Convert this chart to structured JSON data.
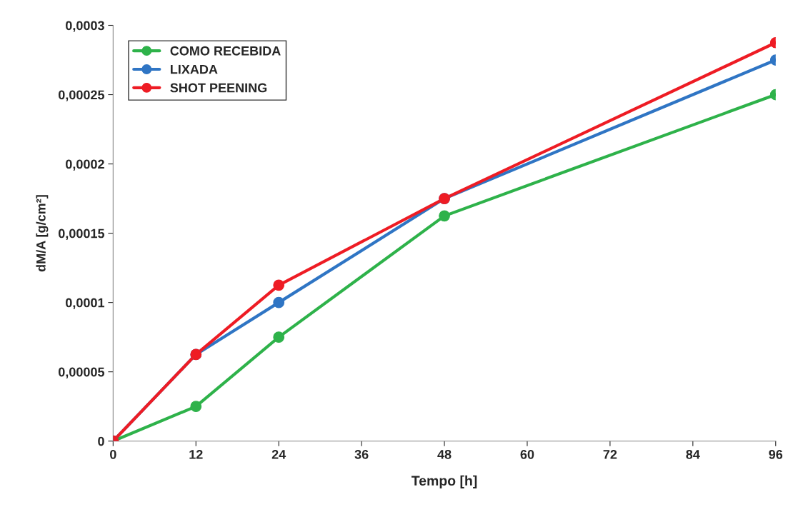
{
  "chart_data": {
    "type": "line",
    "xlabel": "Tempo [h]",
    "ylabel": "dM/A [g/cm²]",
    "x": [
      0,
      12,
      24,
      48,
      96
    ],
    "series": [
      {
        "name": "COMO RECEBIDA",
        "color": "#2eb24a",
        "values": [
          0,
          2.5e-05,
          7.5e-05,
          0.0001625,
          0.00025
        ]
      },
      {
        "name": "LIXADA",
        "color": "#2f75c4",
        "values": [
          0,
          6.25e-05,
          0.0001,
          0.000175,
          0.000275
        ]
      },
      {
        "name": "SHOT PEENING",
        "color": "#ee1c24",
        "values": [
          0,
          6.25e-05,
          0.0001125,
          0.000175,
          0.0002875
        ]
      }
    ],
    "xlim": [
      0,
      96
    ],
    "xticks": [
      0,
      12,
      24,
      36,
      48,
      60,
      72,
      84,
      96
    ],
    "ylim": [
      0,
      0.0003
    ],
    "yticks": [
      0,
      {
        "value": 5e-05,
        "label": "0,00005"
      },
      {
        "value": 0.0001,
        "label": "0,0001"
      },
      {
        "value": 0.00015,
        "label": "0,00015"
      },
      {
        "value": 0.0002,
        "label": "0,0002"
      },
      {
        "value": 0.00025,
        "label": "0,00025"
      },
      {
        "value": 0.0003,
        "label": "0,0003"
      }
    ],
    "grid": false,
    "legend": "top left",
    "marker": "circle",
    "line_style": "solid"
  }
}
